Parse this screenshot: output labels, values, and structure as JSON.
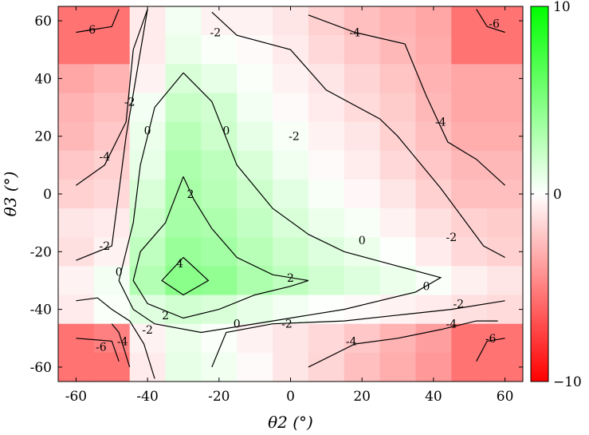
{
  "chart_data": {
    "type": "heatmap",
    "title": "",
    "xlabel": "θ2 (°)",
    "ylabel": "θ3 (°)",
    "xlim": [
      -65,
      65
    ],
    "ylim": [
      -65,
      65
    ],
    "x_ticks": [
      -60,
      -40,
      -20,
      0,
      20,
      40,
      60
    ],
    "y_ticks": [
      60,
      40,
      20,
      0,
      -20,
      -40,
      -60
    ],
    "x_tick_labels": [
      "-60",
      "-40",
      "-20",
      "0",
      "20",
      "40",
      "60"
    ],
    "y_tick_labels": [
      "60",
      "40",
      "20",
      "0",
      "-20",
      "-40",
      "-60"
    ],
    "colorbar": {
      "min": -10,
      "max": 10,
      "ticks": [
        10,
        0,
        -10
      ],
      "tick_labels": [
        "10",
        "0",
        "−10"
      ],
      "colors": {
        "negative": "#ff0000",
        "zero": "#ffffff",
        "positive": "#00ff00"
      }
    },
    "grid": false,
    "x_centers": [
      -60,
      -50,
      -40,
      -30,
      -20,
      -10,
      0,
      10,
      20,
      30,
      40,
      50,
      60
    ],
    "y_centers": [
      60,
      50,
      40,
      30,
      20,
      10,
      0,
      -10,
      -20,
      -30,
      -40,
      -50,
      -60
    ],
    "values": [
      [
        -5.5,
        -5.5,
        -0.8,
        0.5,
        -0.5,
        -0.5,
        -1.0,
        -1.8,
        -2.5,
        -3.0,
        -3.5,
        -5.5,
        -5.5
      ],
      [
        -5.5,
        -5.5,
        -0.8,
        0.8,
        0.2,
        -0.2,
        -0.8,
        -1.5,
        -2.2,
        -2.8,
        -3.3,
        -5.5,
        -5.5
      ],
      [
        -3.5,
        -3.0,
        -0.5,
        1.5,
        1.0,
        0.2,
        -0.5,
        -1.0,
        -1.7,
        -2.3,
        -3.0,
        -3.5,
        -3.5
      ],
      [
        -3.0,
        -2.5,
        0.5,
        2.2,
        1.8,
        0.5,
        -0.2,
        -0.8,
        -1.4,
        -2.0,
        -2.8,
        -3.5,
        -3.5
      ],
      [
        -2.8,
        -2.2,
        0.8,
        2.8,
        2.0,
        1.0,
        0.3,
        -0.5,
        -1.0,
        -1.8,
        -2.5,
        -3.2,
        -3.2
      ],
      [
        -2.2,
        -1.8,
        1.0,
        3.2,
        2.6,
        1.5,
        0.6,
        -0.2,
        -0.7,
        -1.5,
        -2.2,
        -2.8,
        -2.8
      ],
      [
        -1.8,
        -1.5,
        1.5,
        3.4,
        2.8,
        2.0,
        1.1,
        0.3,
        -0.3,
        -1.0,
        -1.8,
        -2.5,
        -2.5
      ],
      [
        -1.0,
        -0.8,
        2.0,
        3.5,
        3.2,
        2.4,
        1.5,
        0.8,
        0.3,
        -0.5,
        -1.2,
        -1.8,
        -2.0
      ],
      [
        -1.2,
        -0.5,
        2.5,
        4.0,
        3.6,
        2.8,
        2.0,
        1.3,
        0.8,
        0.1,
        -0.8,
        -1.5,
        -1.8
      ],
      [
        -0.5,
        0.5,
        3.0,
        4.6,
        4.3,
        3.2,
        2.5,
        1.8,
        1.3,
        0.8,
        0.2,
        -0.6,
        -1.0
      ],
      [
        -0.8,
        0.2,
        1.2,
        1.8,
        1.5,
        1.0,
        0.5,
        0.1,
        -0.2,
        -0.5,
        -0.8,
        -1.2,
        -1.4
      ],
      [
        -5.5,
        -5.0,
        -0.5,
        0.8,
        0.2,
        -0.5,
        -1.0,
        -1.5,
        -2.2,
        -3.0,
        -3.8,
        -5.5,
        -5.5
      ],
      [
        -5.5,
        -5.5,
        -0.8,
        1.0,
        0.6,
        -0.2,
        -1.0,
        -1.6,
        -2.5,
        -3.2,
        -4.0,
        -5.5,
        -5.5
      ]
    ],
    "contours": [
      {
        "level": -6,
        "label": "-6",
        "paths": [
          [
            [
              -60,
              56
            ],
            [
              -50,
              58
            ],
            [
              -48,
              64
            ]
          ],
          [
            [
              -60,
              -50
            ],
            [
              -50,
              -51
            ],
            [
              -48,
              -58
            ]
          ],
          [
            [
              52,
              64
            ],
            [
              55,
              58
            ],
            [
              60,
              56
            ]
          ],
          [
            [
              52,
              -58
            ],
            [
              55,
              -51
            ],
            [
              60,
              -50
            ]
          ]
        ],
        "labels_at": [
          [
            -56,
            57
          ],
          [
            -53,
            -53
          ],
          [
            57,
            59
          ],
          [
            56,
            -50
          ]
        ]
      },
      {
        "level": -4,
        "label": "-4",
        "paths": [
          [
            [
              -60,
              3
            ],
            [
              -52,
              10
            ],
            [
              -46,
              25
            ],
            [
              -44,
              50
            ],
            [
              -40,
              64
            ]
          ],
          [
            [
              -50,
              -45
            ],
            [
              -48,
              -48
            ],
            [
              -45,
              -60
            ]
          ],
          [
            [
              5,
              62
            ],
            [
              18,
              56
            ],
            [
              32,
              52
            ],
            [
              38,
              34
            ],
            [
              44,
              18
            ],
            [
              52,
              12
            ],
            [
              60,
              3
            ]
          ],
          [
            [
              5,
              -60
            ],
            [
              18,
              -52
            ],
            [
              30,
              -50
            ],
            [
              42,
              -47
            ],
            [
              52,
              -44
            ],
            [
              58,
              -44
            ]
          ]
        ],
        "labels_at": [
          [
            -52,
            13
          ],
          [
            -47,
            -51
          ],
          [
            18,
            56
          ],
          [
            42,
            25
          ],
          [
            17,
            -51
          ],
          [
            45,
            -45
          ]
        ]
      },
      {
        "level": -2,
        "label": "-2",
        "paths": [
          [
            [
              -60,
              -23
            ],
            [
              -50,
              -18
            ],
            [
              -46,
              20
            ],
            [
              -40,
              64
            ]
          ],
          [
            [
              -60,
              -37
            ],
            [
              -54,
              -36
            ],
            [
              -50,
              -40
            ],
            [
              -45,
              -44
            ],
            [
              -41,
              -52
            ],
            [
              -38,
              -64
            ]
          ],
          [
            [
              -22,
              63
            ],
            [
              -15,
              55
            ],
            [
              0,
              50
            ],
            [
              10,
              36
            ],
            [
              25,
              26
            ],
            [
              30,
              20
            ],
            [
              42,
              2
            ],
            [
              54,
              -18
            ],
            [
              60,
              -22
            ]
          ],
          [
            [
              -22,
              -60
            ],
            [
              -18,
              -48
            ],
            [
              -5,
              -45
            ],
            [
              15,
              -44
            ],
            [
              30,
              -42
            ],
            [
              45,
              -40
            ],
            [
              60,
              -37
            ]
          ]
        ],
        "labels_at": [
          [
            -52,
            -18
          ],
          [
            -45,
            32
          ],
          [
            -40,
            -47
          ],
          [
            -21,
            56
          ],
          [
            1,
            20
          ],
          [
            45,
            -15
          ],
          [
            -1,
            -45
          ],
          [
            47,
            -38
          ]
        ]
      },
      {
        "level": 0,
        "label": "0",
        "paths": [
          [
            [
              -30,
              42
            ],
            [
              -38,
              30
            ],
            [
              -42,
              10
            ],
            [
              -44,
              -10
            ],
            [
              -48,
              -30
            ],
            [
              -44,
              -40
            ],
            [
              -38,
              -45
            ],
            [
              -25,
              -48
            ],
            [
              -5,
              -44
            ],
            [
              15,
              -40
            ],
            [
              35,
              -34
            ],
            [
              42,
              -29
            ],
            [
              30,
              -25
            ],
            [
              15,
              -20
            ],
            [
              5,
              -14
            ],
            [
              -5,
              -5
            ],
            [
              -15,
              10
            ],
            [
              -22,
              32
            ],
            [
              -30,
              42
            ]
          ]
        ],
        "labels_at": [
          [
            -40,
            22
          ],
          [
            -18,
            22
          ],
          [
            -48,
            -27
          ],
          [
            20,
            -16
          ],
          [
            38,
            -32
          ],
          [
            -15,
            -45
          ]
        ]
      },
      {
        "level": 2,
        "label": "2",
        "paths": [
          [
            [
              -30,
              6
            ],
            [
              -35,
              -10
            ],
            [
              -42,
              -20
            ],
            [
              -44,
              -30
            ],
            [
              -40,
              -38
            ],
            [
              -30,
              -43
            ],
            [
              -20,
              -40
            ],
            [
              -10,
              -35
            ],
            [
              0,
              -32
            ],
            [
              5,
              -30
            ],
            [
              -5,
              -28
            ],
            [
              -15,
              -22
            ],
            [
              -22,
              -12
            ],
            [
              -27,
              -2
            ],
            [
              -30,
              6
            ]
          ]
        ],
        "labels_at": [
          [
            -28,
            0
          ],
          [
            0,
            -29
          ],
          [
            -35,
            -42
          ]
        ]
      },
      {
        "level": 4,
        "label": "4",
        "paths": [
          [
            [
              -30,
              -22
            ],
            [
              -36,
              -30
            ],
            [
              -30,
              -35
            ],
            [
              -23,
              -30
            ],
            [
              -30,
              -22
            ]
          ]
        ],
        "labels_at": [
          [
            -31,
            -24
          ]
        ]
      }
    ]
  }
}
